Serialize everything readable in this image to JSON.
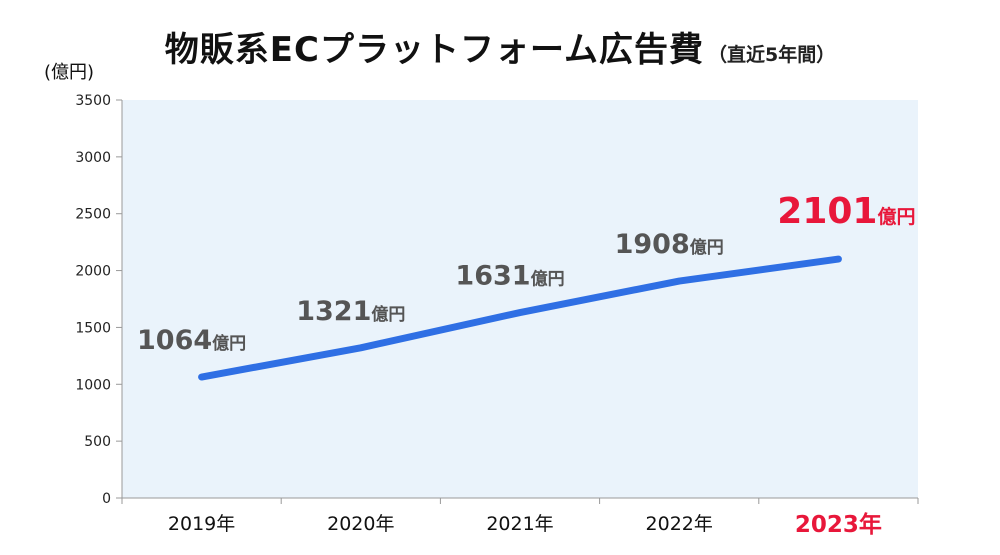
{
  "title": {
    "main": "物販系ECプラットフォーム広告費",
    "sub": "（直近5年間）"
  },
  "chart_data": {
    "type": "line",
    "title": "物販系ECプラットフォーム広告費（直近5年間）",
    "unit_label": "(億円)",
    "categories": [
      "2019年",
      "2020年",
      "2021年",
      "2022年",
      "2023年"
    ],
    "series": [
      {
        "values": [
          1064,
          1321,
          1631,
          1908,
          2101
        ],
        "color": "#2f6fe4"
      }
    ],
    "data_labels": [
      {
        "number": "1064",
        "unit": "億円"
      },
      {
        "number": "1321",
        "unit": "億円"
      },
      {
        "number": "1631",
        "unit": "億円"
      },
      {
        "number": "1908",
        "unit": "億円"
      },
      {
        "number": "2101",
        "unit": "億円"
      }
    ],
    "yticks": [
      "0",
      "500",
      "1000",
      "1500",
      "2000",
      "2500",
      "3000",
      "3500"
    ],
    "ylim": [
      0,
      3500
    ],
    "grid": false,
    "highlight_index": 4,
    "highlight_color": "#e8173a",
    "plot_background": "#eaf3fb"
  }
}
